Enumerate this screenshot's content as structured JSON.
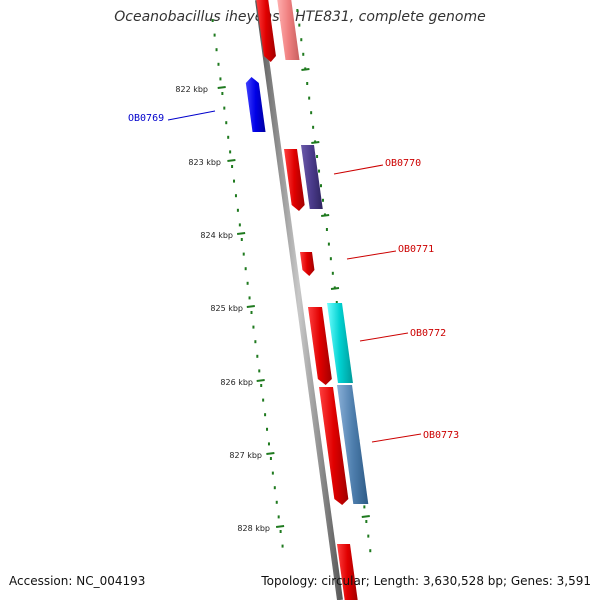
{
  "title": "Oceanobacillus iheyensis HTE831, complete genome",
  "footer": {
    "accession": "Accession: NC_004193",
    "topology": "Topology: circular; Length: 3,630,528 bp; Genes: 3,591"
  },
  "colors": {
    "backbone": "#8a8a8a",
    "tick": "#1f7a1f",
    "gene_label": "#cc0000",
    "gene_label_selected": "#0000cc"
  },
  "ticks": [
    {
      "label": "822 kbp"
    },
    {
      "label": "823 kbp"
    },
    {
      "label": "824 kbp"
    },
    {
      "label": "825 kbp"
    },
    {
      "label": "826 kbp"
    },
    {
      "label": "827 kbp"
    },
    {
      "label": "828 kbp"
    }
  ],
  "genes": [
    {
      "label": "OB0769",
      "selected": true
    },
    {
      "label": "OB0770",
      "selected": false
    },
    {
      "label": "OB0771",
      "selected": false
    },
    {
      "label": "OB0772",
      "selected": false
    },
    {
      "label": "OB0773",
      "selected": false
    }
  ]
}
